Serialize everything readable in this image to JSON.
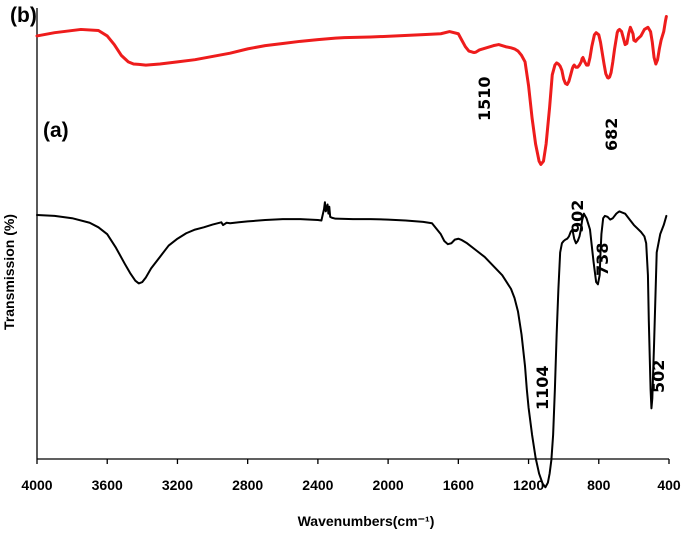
{
  "chart_data": {
    "type": "line",
    "title": "",
    "xlabel": "Wavenumbers(cm⁻¹)",
    "ylabel": "Transmission (%)",
    "xlim": [
      4000,
      400
    ],
    "ylim": [
      0,
      100
    ],
    "x_reversed": true,
    "grid": false,
    "x_ticks": [
      "4000",
      "3600",
      "3200",
      "2800",
      "2400",
      "2000",
      "1600",
      "1200",
      "800",
      "400"
    ],
    "series": [
      {
        "name": "(b)",
        "color": "#ee1c1c",
        "x": [
          4000,
          3900,
          3750,
          3650,
          3600,
          3560,
          3520,
          3480,
          3450,
          3420,
          3380,
          3300,
          3200,
          3100,
          3000,
          2900,
          2800,
          2700,
          2600,
          2500,
          2400,
          2300,
          2250,
          2100,
          1950,
          1800,
          1700,
          1650,
          1600,
          1580,
          1560,
          1540,
          1520,
          1510,
          1500,
          1480,
          1440,
          1400,
          1370,
          1330,
          1300,
          1280,
          1260,
          1240,
          1220,
          1200,
          1180,
          1160,
          1140,
          1130,
          1115,
          1100,
          1080,
          1065,
          1050,
          1040,
          1030,
          1020,
          1010,
          1000,
          990,
          980,
          970,
          960,
          950,
          945,
          940,
          930,
          920,
          910,
          900,
          895,
          890,
          880,
          870,
          860,
          850,
          840,
          825,
          815,
          800,
          790,
          780,
          770,
          760,
          750,
          745,
          738,
          730,
          720,
          710,
          700,
          695,
          690,
          682,
          670,
          660,
          650,
          640,
          630,
          620,
          610,
          605,
          600,
          590,
          580,
          560,
          540,
          520,
          505,
          495,
          485,
          475,
          465,
          455,
          445,
          430,
          420,
          415
        ],
        "y": [
          88,
          89.5,
          91,
          90.5,
          88,
          84,
          79,
          76,
          75,
          74.8,
          74.5,
          75,
          76,
          77,
          78.5,
          80,
          82,
          83.5,
          84.5,
          85.5,
          86.3,
          87,
          87.2,
          87.5,
          88,
          88.6,
          89,
          90,
          89,
          86,
          83,
          81,
          80.5,
          80.3,
          80.5,
          81.5,
          82.5,
          83.5,
          84,
          83,
          82.5,
          82,
          81,
          79,
          76,
          65,
          50,
          38,
          30,
          28.5,
          30,
          38,
          55,
          70,
          74.5,
          75.5,
          75,
          74,
          72,
          68,
          66,
          65.5,
          67,
          70,
          73,
          74,
          74.5,
          73.5,
          73.5,
          74.5,
          76,
          77.5,
          78,
          76,
          74.5,
          74.5,
          78,
          83,
          88.5,
          89.5,
          88.5,
          85,
          80,
          75,
          70.5,
          68.7,
          68.5,
          69,
          71,
          76,
          82,
          87,
          89.5,
          90.5,
          91,
          90,
          87,
          84,
          84.5,
          89,
          92,
          90,
          89,
          86,
          85.5,
          86.5,
          88,
          91,
          92,
          90,
          85,
          78,
          75,
          77,
          82,
          86,
          90,
          95,
          97
        ]
      },
      {
        "name": "(a)",
        "color": "#000000",
        "x": [
          4000,
          3900,
          3800,
          3700,
          3650,
          3600,
          3550,
          3500,
          3470,
          3440,
          3420,
          3400,
          3380,
          3350,
          3300,
          3250,
          3200,
          3150,
          3100,
          3050,
          3000,
          2950,
          2940,
          2920,
          2900,
          2850,
          2800,
          2700,
          2600,
          2500,
          2400,
          2380,
          2365,
          2360,
          2355,
          2345,
          2340,
          2335,
          2330,
          2320,
          2300,
          2200,
          2100,
          2000,
          1900,
          1800,
          1750,
          1700,
          1680,
          1660,
          1640,
          1620,
          1600,
          1580,
          1550,
          1500,
          1450,
          1400,
          1350,
          1300,
          1280,
          1260,
          1240,
          1220,
          1210,
          1200,
          1180,
          1160,
          1140,
          1120,
          1104,
          1090,
          1080,
          1070,
          1060,
          1050,
          1040,
          1030,
          1020,
          1010,
          1000,
          990,
          980,
          970,
          960,
          950,
          940,
          930,
          920,
          910,
          902,
          895,
          885,
          870,
          850,
          830,
          815,
          805,
          795,
          790,
          785,
          775,
          765,
          750,
          735,
          720,
          700,
          690,
          682,
          670,
          650,
          620,
          600,
          560,
          540,
          530,
          520,
          515,
          505,
          500,
          495,
          485,
          470,
          450,
          430,
          415
        ],
        "y": [
          68.2,
          68,
          67.5,
          66.5,
          65.5,
          64,
          61,
          57.5,
          55.5,
          53.8,
          53.2,
          53.5,
          54.5,
          56.5,
          59,
          61.5,
          63,
          64.2,
          65,
          65.5,
          66.1,
          66.6,
          66,
          66.5,
          66.4,
          66.6,
          66.8,
          67.1,
          67.3,
          67.3,
          67.1,
          67,
          69.5,
          71,
          69,
          70.5,
          68.5,
          70,
          67.8,
          67.6,
          67.4,
          67.3,
          67.3,
          67.2,
          67,
          66.7,
          66.4,
          64,
          62.5,
          61.8,
          62,
          62.8,
          63,
          62.7,
          62,
          60.5,
          59,
          57,
          55,
          52,
          50,
          47,
          42,
          35,
          30,
          26,
          20,
          15,
          11.5,
          9.3,
          8.5,
          9.5,
          11.5,
          14.5,
          20,
          30,
          42,
          52,
          60,
          62,
          62.5,
          62.8,
          63,
          63.5,
          64.5,
          65,
          63,
          62,
          62.5,
          63.5,
          65,
          67,
          68.5,
          67.5,
          65,
          58,
          53.5,
          53,
          55,
          60,
          64,
          67.5,
          68,
          67.8,
          67.2,
          67.5,
          68.5,
          68.8,
          69,
          68.8,
          68.5,
          67,
          66,
          64.5,
          63.5,
          62,
          55,
          45,
          30,
          25.8,
          28,
          40,
          60,
          64,
          66,
          68
        ]
      }
    ],
    "annotations": [
      {
        "series": "(b)",
        "label": "1510"
      },
      {
        "series": "(b)",
        "label": "682"
      },
      {
        "series": "(a)",
        "label": "1104"
      },
      {
        "series": "(a)",
        "label": "902"
      },
      {
        "series": "(a)",
        "label": "738"
      },
      {
        "series": "(a)",
        "label": "502"
      }
    ]
  }
}
